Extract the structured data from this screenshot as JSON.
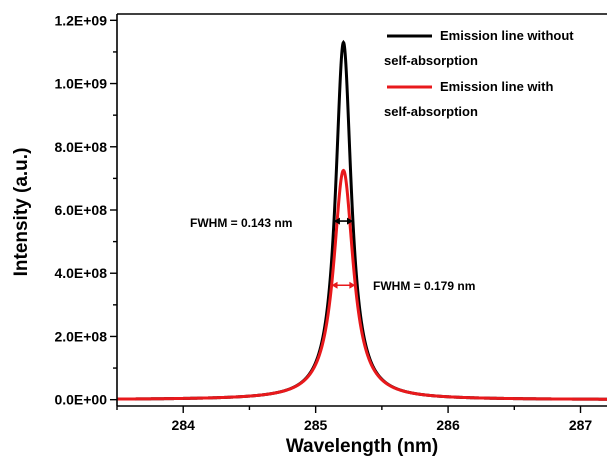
{
  "chart_data": {
    "type": "line",
    "title": "",
    "xlabel": "Wavelength (nm)",
    "ylabel": "Intensity (a.u.)",
    "xlim": [
      283.5,
      287.2
    ],
    "ylim": [
      -20000000,
      1220000000
    ],
    "x_ticks": [
      284,
      285,
      286,
      287
    ],
    "x_tick_labels": [
      "284",
      "285",
      "286",
      "287"
    ],
    "y_ticks": [
      0,
      200000000,
      400000000,
      600000000,
      800000000,
      1000000000,
      1200000000
    ],
    "y_tick_labels": [
      "0.0E+00",
      "2.0E+08",
      "4.0E+08",
      "6.0E+08",
      "8.0E+08",
      "1.0E+09",
      "1.2E+09"
    ],
    "grid": false,
    "legend_position": "top-right",
    "series": [
      {
        "name": "Emission line without self-absorption",
        "legend_lines": [
          "Emission line without",
          "self-absorption"
        ],
        "color": "#000000",
        "shape": "lorentzian",
        "center": 285.21,
        "peak": 1130000000,
        "fwhm": 0.143
      },
      {
        "name": "Emission line with self-absorption",
        "legend_lines": [
          "Emission line with",
          "self-absorption"
        ],
        "color": "#e8191c",
        "shape": "lorentzian",
        "center": 285.21,
        "peak": 725000000,
        "fwhm": 0.179
      }
    ],
    "annotations": [
      {
        "text": "FWHM = 0.143 nm",
        "color": "#000000",
        "x_from": 285.138,
        "x_to": 285.282,
        "y": 565000000
      },
      {
        "text": "FWHM = 0.179 nm",
        "color": "#e8191c",
        "x_from": 285.12,
        "x_to": 285.3,
        "y": 362000000
      }
    ]
  }
}
